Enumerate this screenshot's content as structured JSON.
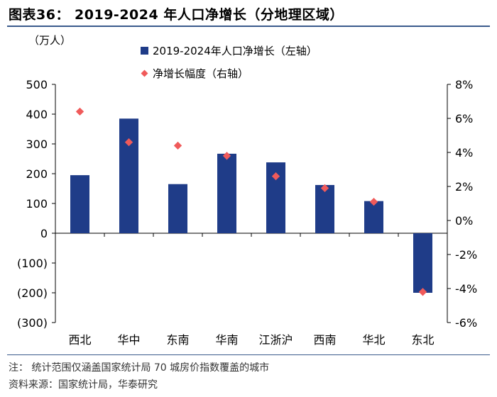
{
  "title": "图表36：  2019-2024 年人口净增长（分地理区域）",
  "chart_data": {
    "type": "bar",
    "categories": [
      "西北",
      "华中",
      "东南",
      "华南",
      "江浙沪",
      "西南",
      "华北",
      "东北"
    ],
    "series": [
      {
        "name": "2019-2024年人口净增长（左轴）",
        "kind": "bar",
        "axis": "left",
        "values": [
          195,
          385,
          165,
          267,
          238,
          162,
          108,
          -200
        ]
      },
      {
        "name": "净增长幅度（右轴）",
        "kind": "scatter",
        "axis": "right",
        "values": [
          6.4,
          4.6,
          4.4,
          3.8,
          2.6,
          1.9,
          1.1,
          -4.2
        ]
      }
    ],
    "left_axis": {
      "unit_label": "（万人）",
      "ylim": [
        -300,
        500
      ],
      "ticks": [
        500,
        400,
        300,
        200,
        100,
        0,
        -100,
        -200,
        -300
      ],
      "tick_labels": [
        "500",
        "400",
        "300",
        "200",
        "100",
        "0",
        "(100)",
        "(200)",
        "(300)"
      ]
    },
    "right_axis": {
      "ylim": [
        -6,
        8
      ],
      "ticks": [
        8,
        6,
        4,
        2,
        0,
        -2,
        -4,
        -6
      ],
      "tick_labels": [
        "8%",
        "6%",
        "4%",
        "2%",
        "0%",
        "-2%",
        "-4%",
        "-6%"
      ]
    },
    "legend_position": "top",
    "colors": {
      "bar": "#1f3c88",
      "marker": "#f05a5a"
    }
  },
  "notes": {
    "note": "注：  统计范围仅涵盖国家统计局 70 城房价指数覆盖的城市",
    "source": "资料来源：国家统计局，华泰研究"
  }
}
